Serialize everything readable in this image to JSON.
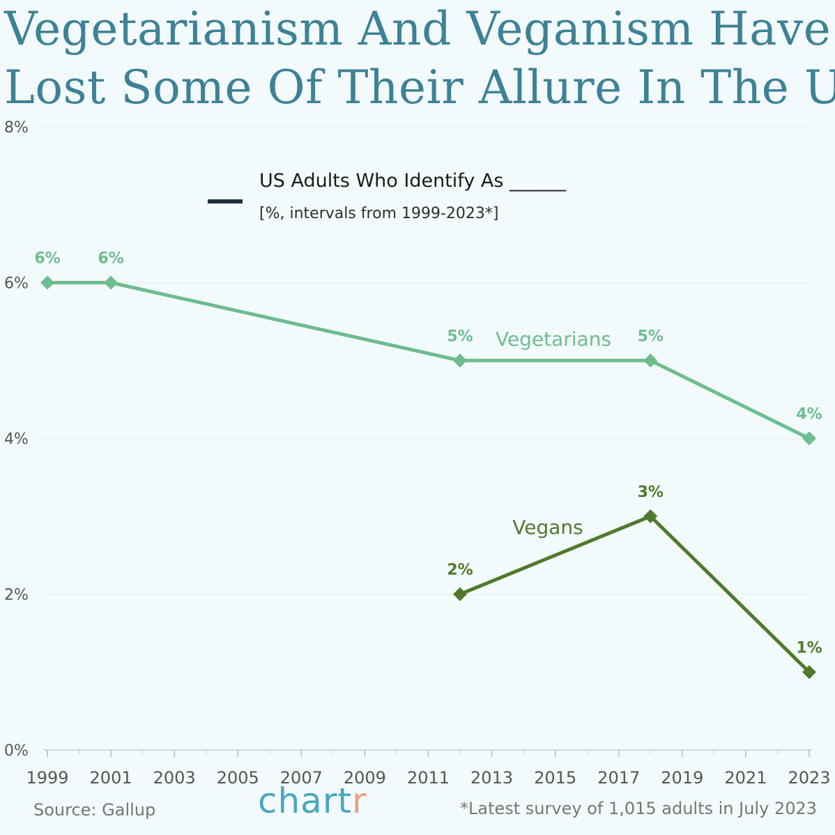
{
  "title_line1": "Vegetarianism And Veganism Have",
  "title_line2": "Lost Some Of Their Allure In The US",
  "legend": {
    "title": "US Adults Who Identify As ______",
    "subtitle": "[%, intervals from 1999-2023*]"
  },
  "footer": {
    "source": "Source: Gallup",
    "logo_main": "chart",
    "logo_accent": "r",
    "note": "*Latest survey of 1,015 adults in July 2023"
  },
  "colors": {
    "background": "#f3fafc",
    "title": "#3d8296",
    "vegetarians": "#6dbd8f",
    "vegans": "#4f7a2c",
    "axis_text": "#555555",
    "grid": "#e1ebee"
  },
  "chart_data": {
    "type": "line",
    "ylim": [
      0,
      8
    ],
    "xlim": [
      1999,
      2023
    ],
    "y_ticks": [
      "0%",
      "2%",
      "4%",
      "6%",
      "8%"
    ],
    "y_tick_values": [
      0,
      2,
      4,
      6,
      8
    ],
    "x_ticks": [
      "1999",
      "2001",
      "2003",
      "2005",
      "2007",
      "2009",
      "2011",
      "2013",
      "2015",
      "2017",
      "2019",
      "2021",
      "2023"
    ],
    "grid": true,
    "series": [
      {
        "name": "Vegetarians",
        "color": "#6dbd8f",
        "x": [
          1999,
          2001,
          2012,
          2018,
          2023
        ],
        "y": [
          6,
          6,
          5,
          5,
          4
        ],
        "labels": [
          "6%",
          "6%",
          "5%",
          "5%",
          "4%"
        ]
      },
      {
        "name": "Vegans",
        "color": "#4f7a2c",
        "x": [
          2012,
          2018,
          2023
        ],
        "y": [
          2,
          3,
          1
        ],
        "labels": [
          "2%",
          "3%",
          "1%"
        ]
      }
    ]
  }
}
